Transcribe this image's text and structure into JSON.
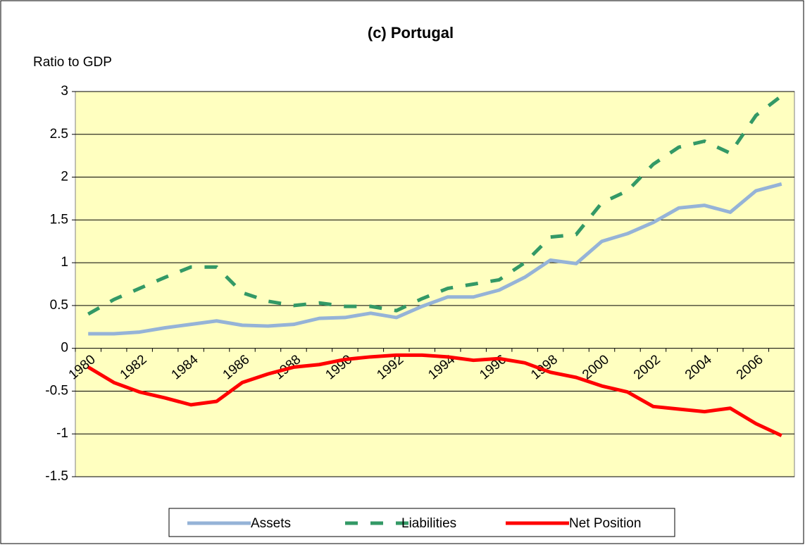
{
  "chart_data": {
    "type": "line",
    "title": "(c) Portugal",
    "y_label": "Ratio to GDP",
    "categories": [
      "1980",
      null,
      "1982",
      null,
      "1984",
      null,
      "1986",
      null,
      "1988",
      null,
      "1990",
      null,
      "1992",
      null,
      "1994",
      null,
      "1996",
      null,
      "1998",
      null,
      "2000",
      null,
      "2002",
      null,
      "2004",
      null,
      "2006",
      null
    ],
    "series": [
      {
        "name": "Assets",
        "color": "#95b3d7",
        "dash": false,
        "values": [
          0.17,
          0.17,
          0.19,
          0.24,
          0.28,
          0.32,
          0.27,
          0.26,
          0.28,
          0.35,
          0.36,
          0.41,
          0.36,
          0.49,
          0.6,
          0.6,
          0.68,
          0.83,
          1.03,
          0.99,
          1.25,
          1.34,
          1.47,
          1.64,
          1.67,
          1.59,
          1.84,
          1.92
        ]
      },
      {
        "name": "Liabilities",
        "color": "#339966",
        "dash": true,
        "values": [
          0.4,
          0.57,
          0.7,
          0.83,
          0.95,
          0.95,
          0.65,
          0.55,
          0.5,
          0.53,
          0.49,
          0.49,
          0.44,
          0.58,
          0.7,
          0.75,
          0.8,
          1.0,
          1.3,
          1.33,
          1.7,
          1.84,
          2.15,
          2.35,
          2.42,
          2.28,
          2.72,
          2.95
        ]
      },
      {
        "name": "Net Position",
        "color": "#ff0000",
        "dash": false,
        "values": [
          -0.22,
          -0.4,
          -0.51,
          -0.58,
          -0.66,
          -0.62,
          -0.4,
          -0.3,
          -0.22,
          -0.19,
          -0.13,
          -0.1,
          -0.08,
          -0.08,
          -0.1,
          -0.14,
          -0.12,
          -0.17,
          -0.28,
          -0.34,
          -0.44,
          -0.51,
          -0.68,
          -0.71,
          -0.74,
          -0.7,
          -0.88,
          -1.02
        ]
      }
    ],
    "ylim": [
      -1.5,
      3
    ],
    "yticks": [
      -1.5,
      -1,
      -0.5,
      0,
      0.5,
      1,
      1.5,
      2,
      2.5,
      3
    ],
    "grid": true,
    "legend": "bottom"
  }
}
